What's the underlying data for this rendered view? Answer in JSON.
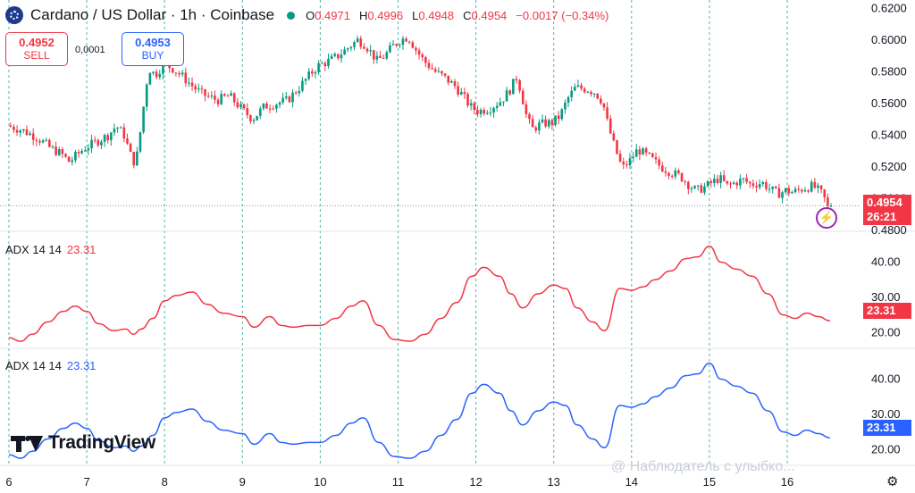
{
  "header": {
    "title": "Cardano / US Dollar · 1h · Coinbase",
    "ohlc": [
      {
        "k": "O",
        "v": "0.4971"
      },
      {
        "k": "H",
        "v": "0.4996"
      },
      {
        "k": "L",
        "v": "0.4948"
      },
      {
        "k": "C",
        "v": "0.4954"
      }
    ],
    "change": "−0.0017 (−0.34%)"
  },
  "trade": {
    "sell_price": "0.4952",
    "sell_label": "SELL",
    "buy_price": "0.4953",
    "buy_label": "BUY",
    "spread": "0,0001"
  },
  "price_tag": {
    "price": "0.4954",
    "countdown": "26:21"
  },
  "adx1": {
    "label": "ADX 14 14",
    "value": "23.31",
    "color": "#f23645"
  },
  "adx2": {
    "label": "ADX 14 14",
    "value": "23.31",
    "color": "#2962ff"
  },
  "logo": {
    "text": "TradingView"
  },
  "watermark": "@ Наблюдатель с улыбко...",
  "colors": {
    "up": "#089981",
    "down": "#f23645",
    "grid": "#089981"
  },
  "chart_data": [
    {
      "type": "candlestick",
      "title": "Cardano / US Dollar · 1h · Coinbase",
      "x_ticks": [
        "6",
        "7",
        "8",
        "9",
        "10",
        "11",
        "12",
        "13",
        "14",
        "15",
        "16"
      ],
      "y_ticks": [
        "0.6200",
        "0.6000",
        "0.5800",
        "0.5600",
        "0.5400",
        "0.5200",
        "0.5000",
        "0.4800"
      ],
      "ylim": [
        0.4805,
        0.623
      ],
      "x_range": [
        6,
        16.6
      ],
      "close_path": [
        [
          6.0,
          0.546
        ],
        [
          6.2,
          0.543
        ],
        [
          6.4,
          0.538
        ],
        [
          6.55,
          0.532
        ],
        [
          6.7,
          0.528
        ],
        [
          6.8,
          0.523
        ],
        [
          6.9,
          0.528
        ],
        [
          7.0,
          0.532
        ],
        [
          7.15,
          0.536
        ],
        [
          7.3,
          0.54
        ],
        [
          7.4,
          0.546
        ],
        [
          7.5,
          0.54
        ],
        [
          7.6,
          0.525
        ],
        [
          7.65,
          0.522
        ],
        [
          7.72,
          0.546
        ],
        [
          7.78,
          0.57
        ],
        [
          7.82,
          0.582
        ],
        [
          7.9,
          0.578
        ],
        [
          8.0,
          0.584
        ],
        [
          8.1,
          0.583
        ],
        [
          8.25,
          0.577
        ],
        [
          8.4,
          0.57
        ],
        [
          8.5,
          0.566
        ],
        [
          8.7,
          0.562
        ],
        [
          8.85,
          0.565
        ],
        [
          9.0,
          0.557
        ],
        [
          9.15,
          0.55
        ],
        [
          9.3,
          0.558
        ],
        [
          9.45,
          0.56
        ],
        [
          9.6,
          0.562
        ],
        [
          9.75,
          0.57
        ],
        [
          9.9,
          0.579
        ],
        [
          10.0,
          0.584
        ],
        [
          10.1,
          0.586
        ],
        [
          10.25,
          0.59
        ],
        [
          10.4,
          0.596
        ],
        [
          10.5,
          0.6
        ],
        [
          10.6,
          0.597
        ],
        [
          10.75,
          0.587
        ],
        [
          10.85,
          0.59
        ],
        [
          10.95,
          0.596
        ],
        [
          11.05,
          0.6
        ],
        [
          11.15,
          0.602
        ],
        [
          11.25,
          0.594
        ],
        [
          11.35,
          0.587
        ],
        [
          11.5,
          0.58
        ],
        [
          11.6,
          0.577
        ],
        [
          11.75,
          0.571
        ],
        [
          11.85,
          0.565
        ],
        [
          11.95,
          0.558
        ],
        [
          12.05,
          0.555
        ],
        [
          12.2,
          0.557
        ],
        [
          12.35,
          0.562
        ],
        [
          12.45,
          0.568
        ],
        [
          12.55,
          0.577
        ],
        [
          12.62,
          0.563
        ],
        [
          12.68,
          0.55
        ],
        [
          12.75,
          0.544
        ],
        [
          12.85,
          0.547
        ],
        [
          13.0,
          0.548
        ],
        [
          13.1,
          0.552
        ],
        [
          13.2,
          0.563
        ],
        [
          13.3,
          0.57
        ],
        [
          13.45,
          0.569
        ],
        [
          13.55,
          0.567
        ],
        [
          13.65,
          0.561
        ],
        [
          13.72,
          0.546
        ],
        [
          13.8,
          0.533
        ],
        [
          13.9,
          0.519
        ],
        [
          14.0,
          0.524
        ],
        [
          14.1,
          0.531
        ],
        [
          14.25,
          0.526
        ],
        [
          14.4,
          0.52
        ],
        [
          14.55,
          0.516
        ],
        [
          14.65,
          0.514
        ],
        [
          14.75,
          0.509
        ],
        [
          14.85,
          0.505
        ],
        [
          14.95,
          0.507
        ],
        [
          15.05,
          0.51
        ],
        [
          15.15,
          0.513
        ],
        [
          15.25,
          0.508
        ],
        [
          15.35,
          0.51
        ],
        [
          15.45,
          0.512
        ],
        [
          15.55,
          0.509
        ],
        [
          15.7,
          0.51
        ],
        [
          15.8,
          0.506
        ],
        [
          15.9,
          0.503
        ],
        [
          16.0,
          0.505
        ],
        [
          16.1,
          0.504
        ],
        [
          16.2,
          0.506
        ],
        [
          16.35,
          0.508
        ],
        [
          16.45,
          0.504
        ],
        [
          16.55,
          0.4954
        ]
      ],
      "last_price": 0.4954
    },
    {
      "type": "line",
      "series": [
        {
          "name": "ADX 14 14",
          "color": "#f23645"
        }
      ],
      "y_ticks": [
        "40.00",
        "30.00",
        "20.00"
      ],
      "ylim": [
        16,
        48
      ],
      "x": [
        6.0,
        6.15,
        6.3,
        6.5,
        6.7,
        6.85,
        7.0,
        7.15,
        7.35,
        7.5,
        7.6,
        7.7,
        7.85,
        8.0,
        8.15,
        8.35,
        8.55,
        8.75,
        9.0,
        9.15,
        9.35,
        9.5,
        9.65,
        9.85,
        10.0,
        10.2,
        10.4,
        10.55,
        10.75,
        10.95,
        11.15,
        11.35,
        11.55,
        11.75,
        11.95,
        12.1,
        12.3,
        12.45,
        12.6,
        12.8,
        13.0,
        13.15,
        13.3,
        13.5,
        13.65,
        13.85,
        14.0,
        14.15,
        14.3,
        14.5,
        14.7,
        14.85,
        15.0,
        15.15,
        15.35,
        15.55,
        15.75,
        15.95,
        16.1,
        16.25,
        16.4,
        16.55
      ],
      "values": [
        18.5,
        17.5,
        19.5,
        23,
        26,
        27.5,
        26,
        22.5,
        20.5,
        21,
        19.5,
        21,
        24,
        29,
        30.5,
        31.5,
        28,
        25.5,
        24.5,
        21.5,
        24.5,
        22,
        21.5,
        22,
        22,
        24,
        27.5,
        29,
        22,
        18,
        17.5,
        19.5,
        24,
        28.5,
        36,
        38.5,
        36,
        31,
        27,
        31,
        33.5,
        32.5,
        27,
        23,
        20.5,
        32.5,
        32,
        33,
        35,
        37.5,
        41,
        41.5,
        44.5,
        40,
        38,
        36,
        31,
        25,
        24,
        25.5,
        24.5,
        23.31
      ]
    },
    {
      "type": "line",
      "series": [
        {
          "name": "ADX 14 14",
          "color": "#2962ff"
        }
      ],
      "y_ticks": [
        "40.00",
        "30.00",
        "20.00"
      ],
      "ylim": [
        16,
        48
      ],
      "x": [
        6.0,
        6.15,
        6.3,
        6.5,
        6.7,
        6.85,
        7.0,
        7.15,
        7.35,
        7.5,
        7.6,
        7.7,
        7.85,
        8.0,
        8.15,
        8.35,
        8.55,
        8.75,
        9.0,
        9.15,
        9.35,
        9.5,
        9.65,
        9.85,
        10.0,
        10.2,
        10.4,
        10.55,
        10.75,
        10.95,
        11.15,
        11.35,
        11.55,
        11.75,
        11.95,
        12.1,
        12.3,
        12.45,
        12.6,
        12.8,
        13.0,
        13.15,
        13.3,
        13.5,
        13.65,
        13.85,
        14.0,
        14.15,
        14.3,
        14.5,
        14.7,
        14.85,
        15.0,
        15.15,
        15.35,
        15.55,
        15.75,
        15.95,
        16.1,
        16.25,
        16.4,
        16.55
      ],
      "values": [
        18.5,
        17.5,
        19.5,
        23,
        26,
        27.5,
        26,
        22.5,
        20.5,
        21,
        19.5,
        21,
        24,
        29,
        30.5,
        31.5,
        28,
        25.5,
        24.5,
        21.5,
        24.5,
        22,
        21.5,
        22,
        22,
        24,
        27.5,
        29,
        22,
        18,
        17.5,
        19.5,
        24,
        28.5,
        36,
        38.5,
        36,
        31,
        27,
        31,
        33.5,
        32.5,
        27,
        23,
        20.5,
        32.5,
        32,
        33,
        35,
        37.5,
        41,
        41.5,
        44.5,
        40,
        38,
        36,
        31,
        25,
        24,
        25.5,
        24.5,
        23.31
      ]
    }
  ]
}
